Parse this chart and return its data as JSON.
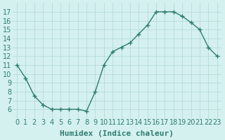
{
  "x": [
    0,
    1,
    2,
    3,
    4,
    5,
    6,
    7,
    8,
    9,
    10,
    11,
    12,
    13,
    14,
    15,
    16,
    17,
    18,
    19,
    20,
    21,
    22,
    23
  ],
  "y": [
    11,
    9.5,
    7.5,
    6.5,
    6,
    6,
    6,
    6,
    5.8,
    8,
    11,
    12.5,
    13,
    13.5,
    14.5,
    15.5,
    17,
    17,
    17,
    16.5,
    15.8,
    15,
    13,
    12
  ],
  "line_color": "#2e7d6e",
  "marker": "+",
  "marker_size": 4,
  "bg_color": "#d4f0ef",
  "grid_color": "#b0d8d6",
  "xlabel": "Humidex (Indice chaleur)",
  "ylim": [
    5,
    18
  ],
  "xlim": [
    -0.5,
    23.5
  ],
  "yticks": [
    6,
    7,
    8,
    9,
    10,
    11,
    12,
    13,
    14,
    15,
    16,
    17
  ],
  "xticks": [
    0,
    1,
    2,
    3,
    4,
    5,
    6,
    7,
    8,
    9,
    10,
    11,
    12,
    13,
    14,
    15,
    16,
    17,
    18,
    19,
    20,
    21,
    22,
    23
  ],
  "xlabel_fontsize": 8,
  "tick_fontsize": 7
}
